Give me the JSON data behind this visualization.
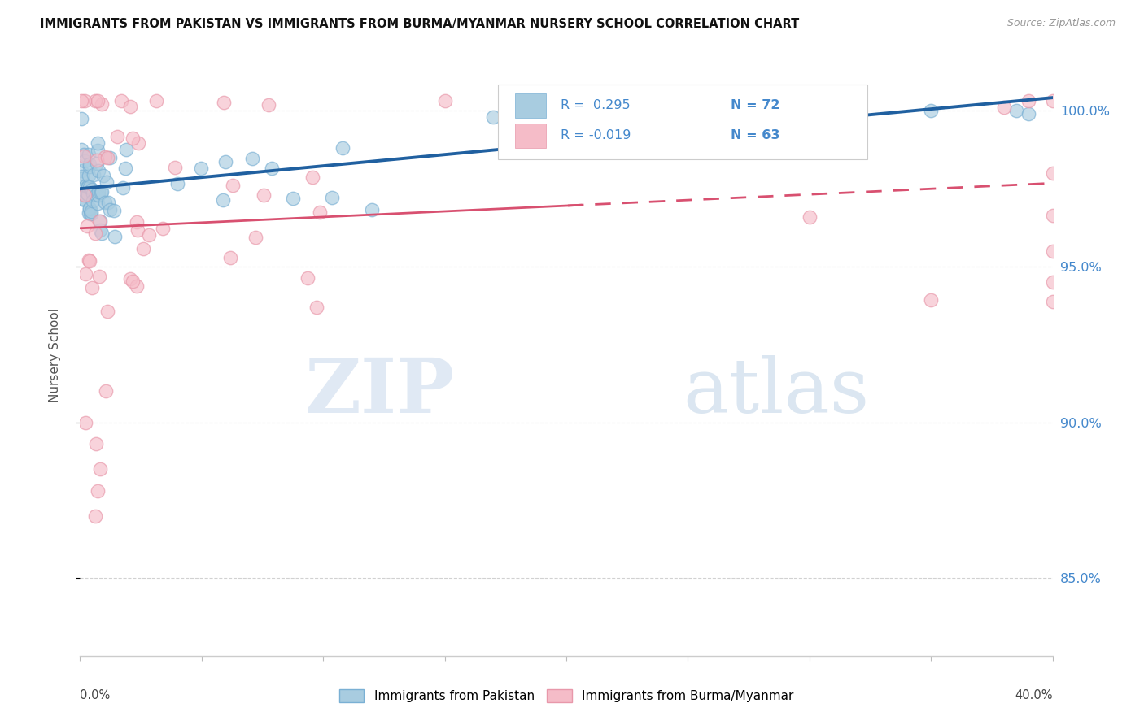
{
  "title": "IMMIGRANTS FROM PAKISTAN VS IMMIGRANTS FROM BURMA/MYANMAR NURSERY SCHOOL CORRELATION CHART",
  "source": "Source: ZipAtlas.com",
  "ylabel": "Nursery School",
  "yticks": [
    0.85,
    0.9,
    0.95,
    1.0
  ],
  "ytick_labels": [
    "85.0%",
    "90.0%",
    "95.0%",
    "100.0%"
  ],
  "xmin": 0.0,
  "xmax": 0.4,
  "ymin": 0.825,
  "ymax": 1.018,
  "r_pakistan": 0.295,
  "n_pakistan": 72,
  "r_burma": -0.019,
  "n_burma": 63,
  "color_pakistan_fill": "#a8cce0",
  "color_pakistan_edge": "#7ab0d4",
  "color_burma_fill": "#f5bcc8",
  "color_burma_edge": "#e898aa",
  "color_trendline_pakistan": "#2060a0",
  "color_trendline_burma": "#d85070",
  "color_grid": "#cccccc",
  "color_right_axis": "#4488cc",
  "color_title": "#111111",
  "color_source": "#999999",
  "watermark_zip": "ZIP",
  "watermark_atlas": "atlas",
  "legend_label_pakistan": "Immigrants from Pakistan",
  "legend_label_burma": "Immigrants from Burma/Myanmar"
}
